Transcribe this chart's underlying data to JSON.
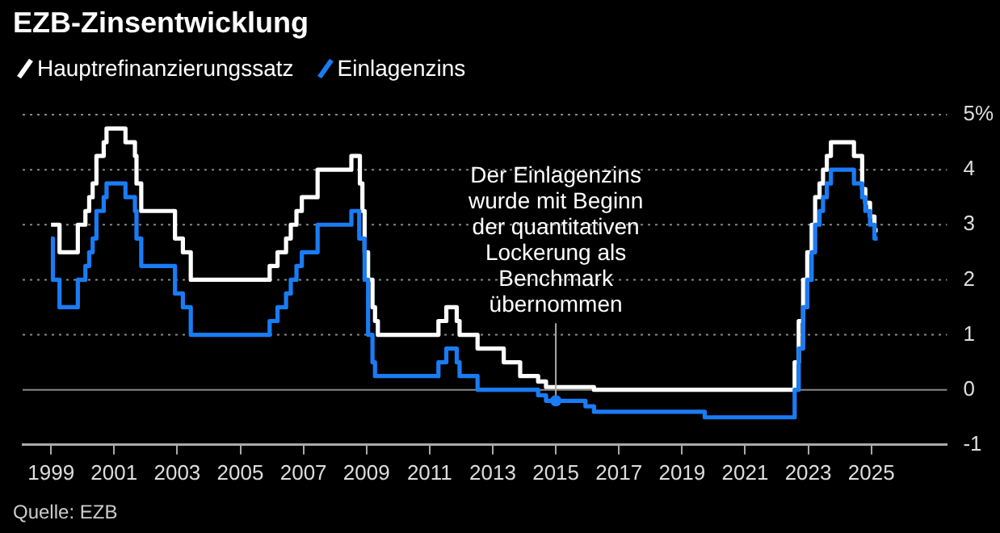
{
  "chart_data": {
    "type": "step",
    "title": "EZB-Zinsentwicklung",
    "legend": "top left",
    "grid": "y",
    "xlim": [
      1998.1,
      2027.4
    ],
    "xticks": [
      1999,
      2001,
      2003,
      2005,
      2007,
      2009,
      2011,
      2013,
      2015,
      2017,
      2019,
      2021,
      2023,
      2025
    ],
    "ylim": [
      -1,
      5
    ],
    "yticks": [
      -1,
      0,
      1,
      2,
      3,
      4,
      {
        "value": 5,
        "label": "5%"
      }
    ],
    "annotations": [
      {
        "text": "Der Einlagenzins\nwurde mit Beginn\nder quantitativen\nLockerung als\nBenchmark\nübernommen",
        "x": 2015,
        "y": -0.2
      },
      "Quelle: EZB"
    ],
    "series": [
      {
        "name": "Hauptrefinanzierungssatz",
        "color": "#ffffff",
        "x": [
          1999.0,
          1999.27,
          1999.85,
          2000.09,
          2000.21,
          2000.32,
          2000.44,
          2000.67,
          2000.76,
          2001.36,
          2001.66,
          2001.71,
          2001.86,
          2002.93,
          2003.18,
          2003.43,
          2005.93,
          2006.18,
          2006.45,
          2006.6,
          2006.78,
          2006.95,
          2007.45,
          2008.52,
          2008.79,
          2008.87,
          2008.94,
          2009.05,
          2009.19,
          2009.27,
          2009.36,
          2011.28,
          2011.53,
          2011.86,
          2011.95,
          2012.52,
          2013.35,
          2013.87,
          2014.44,
          2014.69,
          2016.21,
          2022.57,
          2022.7,
          2022.84,
          2022.97,
          2023.11,
          2023.22,
          2023.36,
          2023.47,
          2023.59,
          2023.72,
          2024.45,
          2024.71,
          2024.81,
          2024.96,
          2025.1,
          2025.2
        ],
        "values": [
          3.0,
          2.5,
          3.0,
          3.25,
          3.5,
          3.75,
          4.25,
          4.5,
          4.75,
          4.5,
          4.25,
          3.75,
          3.25,
          2.75,
          2.5,
          2.0,
          2.25,
          2.5,
          2.75,
          3.0,
          3.25,
          3.5,
          4.0,
          4.25,
          3.75,
          3.25,
          2.5,
          2.0,
          1.5,
          1.25,
          1.0,
          1.25,
          1.5,
          1.25,
          1.0,
          0.75,
          0.5,
          0.25,
          0.15,
          0.05,
          0.0,
          0.5,
          1.25,
          2.0,
          2.5,
          3.0,
          3.5,
          3.75,
          4.0,
          4.25,
          4.5,
          4.25,
          3.65,
          3.4,
          3.15,
          2.9,
          2.9
        ]
      },
      {
        "name": "Einlagenzins",
        "color": "#1a7cf5",
        "x": [
          1999.0,
          1999.06,
          1999.27,
          1999.85,
          2000.09,
          2000.21,
          2000.32,
          2000.44,
          2000.67,
          2000.76,
          2001.36,
          2001.66,
          2001.71,
          2001.86,
          2002.93,
          2003.18,
          2003.43,
          2005.93,
          2006.18,
          2006.45,
          2006.6,
          2006.78,
          2006.95,
          2007.45,
          2008.52,
          2008.77,
          2008.94,
          2009.05,
          2009.19,
          2009.27,
          2011.28,
          2011.53,
          2011.86,
          2011.95,
          2012.52,
          2014.44,
          2014.69,
          2015.94,
          2016.21,
          2019.72,
          2022.57,
          2022.7,
          2022.84,
          2022.97,
          2023.11,
          2023.22,
          2023.36,
          2023.47,
          2023.59,
          2023.72,
          2024.45,
          2024.71,
          2024.81,
          2024.96,
          2025.1,
          2025.2
        ],
        "values": [
          2.75,
          2.0,
          1.5,
          2.0,
          2.25,
          2.5,
          2.75,
          3.25,
          3.5,
          3.75,
          3.5,
          3.25,
          2.75,
          2.25,
          1.75,
          1.5,
          1.0,
          1.25,
          1.5,
          1.75,
          2.0,
          2.25,
          2.5,
          3.0,
          3.25,
          2.75,
          2.0,
          1.0,
          0.5,
          0.25,
          0.5,
          0.75,
          0.5,
          0.25,
          0.0,
          -0.1,
          -0.2,
          -0.3,
          -0.4,
          -0.5,
          0.0,
          0.75,
          1.5,
          2.0,
          2.5,
          3.0,
          3.25,
          3.5,
          3.75,
          4.0,
          3.75,
          3.5,
          3.25,
          3.0,
          2.75,
          2.75
        ]
      }
    ]
  }
}
